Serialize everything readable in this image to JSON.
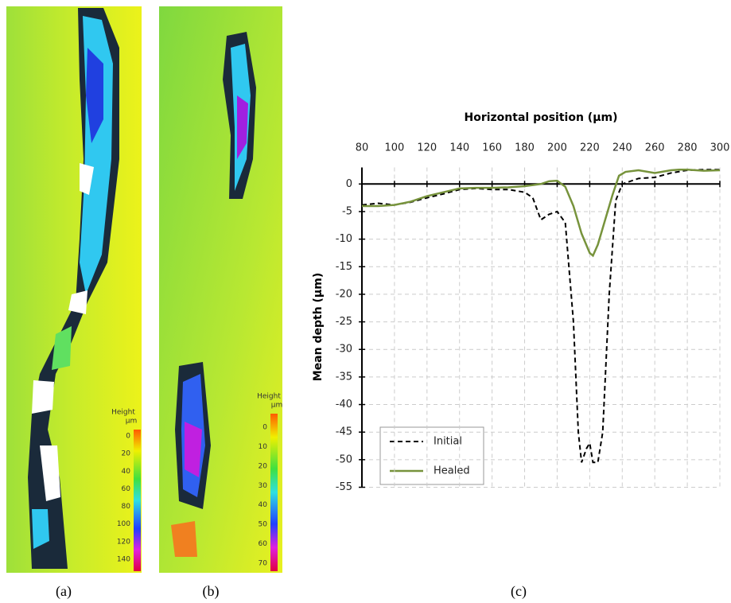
{
  "panels": [
    {
      "label": "(a)",
      "colorbar_title": "Height",
      "colorbar_unit": "µm",
      "colorbar_ticks": [
        0,
        20,
        40,
        60,
        80,
        100,
        120,
        140
      ]
    },
    {
      "label": "(b)",
      "colorbar_title": "Height",
      "colorbar_unit": "µm",
      "colorbar_ticks": [
        0,
        10,
        20,
        30,
        40,
        50,
        60,
        70
      ]
    }
  ],
  "chart_data": {
    "type": "line",
    "label": "(c)",
    "x_label": "Horizontal position (µm)",
    "y_label": "Mean depth (µm)",
    "xlim": [
      80,
      300
    ],
    "xticks": [
      80,
      100,
      120,
      140,
      160,
      180,
      200,
      220,
      240,
      260,
      280,
      300
    ],
    "ylim": [
      -55,
      3
    ],
    "yticks": [
      0,
      -5,
      -10,
      -15,
      -20,
      -25,
      -30,
      -35,
      -40,
      -45,
      -50,
      -55
    ],
    "grid": true,
    "legend": "lower left",
    "series": [
      {
        "name": "Initial",
        "color": "#000000",
        "dash": true,
        "x": [
          80,
          90,
          100,
          110,
          120,
          130,
          140,
          150,
          160,
          170,
          180,
          185,
          190,
          195,
          200,
          205,
          210,
          213,
          215,
          218,
          220,
          222,
          225,
          228,
          232,
          236,
          240,
          250,
          260,
          270,
          280,
          290,
          300
        ],
        "values": [
          -3.8,
          -3.5,
          -3.8,
          -3.3,
          -2.5,
          -1.8,
          -1.0,
          -0.8,
          -1,
          -1,
          -1.5,
          -2.5,
          -6.5,
          -5.5,
          -5,
          -7,
          -25,
          -45,
          -50.5,
          -48,
          -47,
          -50.5,
          -50.5,
          -45,
          -20,
          -3,
          0,
          1,
          1.2,
          2,
          2.5,
          2.6,
          2.6
        ]
      },
      {
        "name": "Healed",
        "color": "#77933c",
        "dash": false,
        "x": [
          80,
          90,
          100,
          110,
          120,
          130,
          140,
          150,
          160,
          170,
          180,
          190,
          195,
          200,
          205,
          210,
          215,
          220,
          222,
          225,
          230,
          234,
          238,
          242,
          250,
          260,
          270,
          275,
          280,
          290,
          300
        ],
        "values": [
          -4,
          -4,
          -3.8,
          -3.2,
          -2.2,
          -1.5,
          -0.8,
          -0.7,
          -0.7,
          -0.6,
          -0.4,
          0,
          0.5,
          0.6,
          -0.5,
          -4,
          -9,
          -12.5,
          -13,
          -11,
          -6,
          -2,
          1.5,
          2.2,
          2.5,
          2,
          2.5,
          2.6,
          2.6,
          2.4,
          2.5
        ]
      }
    ]
  }
}
